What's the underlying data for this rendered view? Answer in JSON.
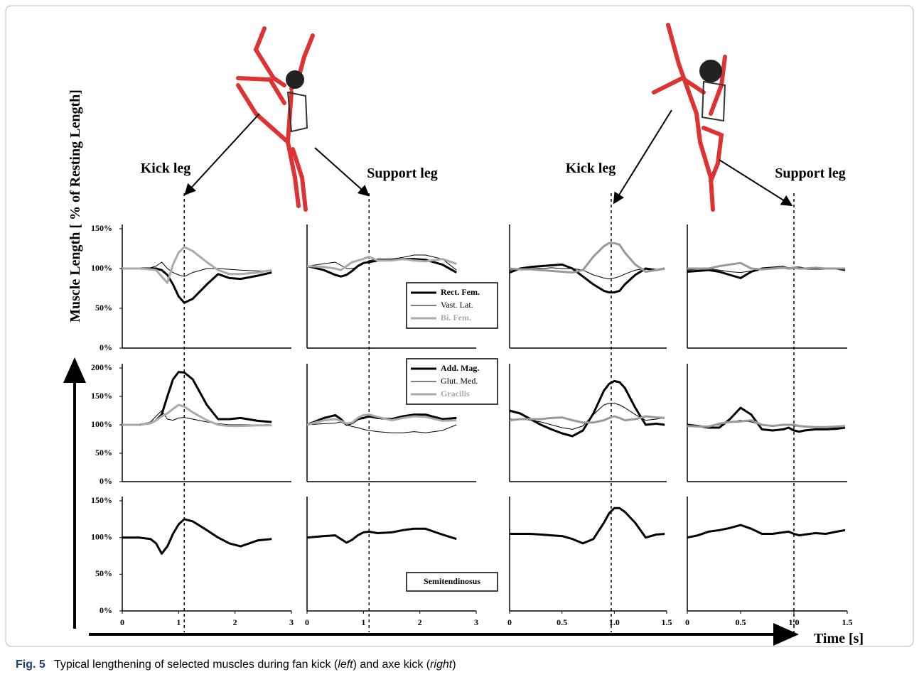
{
  "labels": {
    "kick_left": "Kick leg",
    "support_left": "Support leg",
    "kick_right": "Kick leg",
    "support_right": "Support leg",
    "y_axis": "Muscle Length [ % of Resting Length]",
    "x_axis": "Time [s]"
  },
  "caption": {
    "label": "Fig. 5",
    "parts": [
      "Typical lengthening of selected muscles during fan kick (",
      "left",
      ") and axe kick (",
      "right",
      ")"
    ]
  },
  "chart_data": [
    {
      "type": "line",
      "xlim": [
        0,
        3
      ],
      "ylim": [
        0,
        150
      ],
      "yticks": [
        {
          "value": 0,
          "label": "0%"
        },
        {
          "value": 50,
          "label": "50%"
        },
        {
          "value": 100,
          "label": "100%"
        },
        {
          "value": 150,
          "label": "150%"
        }
      ],
      "event_x": 1.1,
      "x": [
        0,
        0.3,
        0.5,
        0.6,
        0.7,
        0.8,
        0.9,
        1.0,
        1.1,
        1.25,
        1.5,
        1.7,
        1.9,
        2.1,
        2.4,
        2.65
      ],
      "series": [
        {
          "color": "#000000",
          "width": 3,
          "values": [
            100,
            100,
            100,
            100,
            98,
            92,
            80,
            65,
            57,
            62,
            80,
            93,
            88,
            87,
            91,
            95
          ]
        },
        {
          "color": "#000000",
          "width": 1,
          "values": [
            100,
            100,
            101,
            103,
            108,
            100,
            95,
            92,
            90,
            95,
            100,
            100,
            99,
            98,
            97,
            97
          ]
        },
        {
          "color": "#aaaaaa",
          "width": 3,
          "values": [
            100,
            100,
            99,
            98,
            90,
            82,
            105,
            120,
            127,
            122,
            108,
            98,
            93,
            93,
            95,
            98
          ]
        }
      ]
    },
    {
      "type": "line",
      "xlim": [
        0,
        3
      ],
      "ylim": [
        0,
        150
      ],
      "event_x": 1.1,
      "legend": "lower right",
      "x": [
        0,
        0.3,
        0.5,
        0.6,
        0.7,
        0.8,
        0.9,
        1.0,
        1.1,
        1.25,
        1.5,
        1.7,
        1.9,
        2.1,
        2.4,
        2.65
      ],
      "series": [
        {
          "name": "Rect. Fem.",
          "color": "#000000",
          "width": 3,
          "values": [
            103,
            98,
            92,
            90,
            92,
            97,
            103,
            107,
            108,
            110,
            111,
            112,
            112,
            111,
            105,
            95
          ]
        },
        {
          "name": "Vast. Lat.",
          "color": "#000000",
          "width": 1,
          "values": [
            103,
            106,
            108,
            104,
            100,
            100,
            102,
            106,
            110,
            112,
            112,
            114,
            117,
            117,
            112,
            98
          ]
        },
        {
          "name": "Bi. Fem.",
          "color": "#aaaaaa",
          "width": 3,
          "values": [
            103,
            102,
            100,
            98,
            103,
            108,
            110,
            112,
            115,
            110,
            110,
            112,
            110,
            109,
            112,
            106
          ]
        }
      ]
    },
    {
      "type": "line",
      "xlim": [
        0,
        1.5
      ],
      "ylim": [
        0,
        150
      ],
      "event_x": 0.97,
      "x": [
        0,
        0.1,
        0.2,
        0.3,
        0.4,
        0.5,
        0.6,
        0.7,
        0.8,
        0.9,
        0.95,
        1.0,
        1.05,
        1.1,
        1.2,
        1.3,
        1.4,
        1.48
      ],
      "series": [
        {
          "color": "#000000",
          "width": 3,
          "values": [
            95,
            100,
            102,
            103,
            104,
            105,
            100,
            90,
            80,
            72,
            70,
            70,
            72,
            80,
            92,
            100,
            98,
            100
          ]
        },
        {
          "color": "#000000",
          "width": 1,
          "values": [
            98,
            100,
            100,
            100,
            101,
            100,
            100,
            98,
            92,
            88,
            87,
            88,
            90,
            93,
            98,
            100,
            99,
            100
          ]
        },
        {
          "color": "#999999",
          "width": 3,
          "values": [
            100,
            99,
            99,
            98,
            97,
            96,
            95,
            98,
            115,
            128,
            132,
            132,
            130,
            120,
            105,
            96,
            98,
            100
          ]
        }
      ]
    },
    {
      "type": "line",
      "xlim": [
        0,
        1.5
      ],
      "ylim": [
        0,
        150
      ],
      "event_x": 1.0,
      "x": [
        0,
        0.1,
        0.2,
        0.3,
        0.4,
        0.5,
        0.6,
        0.7,
        0.8,
        0.9,
        0.95,
        1.0,
        1.05,
        1.1,
        1.2,
        1.3,
        1.4,
        1.48
      ],
      "series": [
        {
          "color": "#000000",
          "width": 3,
          "values": [
            96,
            97,
            98,
            96,
            92,
            88,
            96,
            100,
            101,
            102,
            100,
            101,
            101,
            100,
            100,
            100,
            100,
            98
          ]
        },
        {
          "color": "#000000",
          "width": 1,
          "values": [
            98,
            99,
            100,
            98,
            96,
            95,
            97,
            99,
            100,
            100,
            100,
            100,
            100,
            100,
            100,
            100,
            100,
            99
          ]
        },
        {
          "color": "#999999",
          "width": 3,
          "values": [
            100,
            100,
            100,
            103,
            105,
            107,
            100,
            99,
            100,
            101,
            100,
            101,
            100,
            100,
            101,
            100,
            100,
            100
          ]
        }
      ]
    },
    {
      "type": "line",
      "xlim": [
        0,
        3
      ],
      "ylim": [
        0,
        200
      ],
      "yticks": [
        {
          "value": 0,
          "label": "0%"
        },
        {
          "value": 50,
          "label": "50%"
        },
        {
          "value": 100,
          "label": "100%"
        },
        {
          "value": 150,
          "label": "150%"
        },
        {
          "value": 200,
          "label": "200%"
        }
      ],
      "x": [
        0,
        0.3,
        0.5,
        0.6,
        0.7,
        0.8,
        0.9,
        1.0,
        1.1,
        1.25,
        1.5,
        1.7,
        1.9,
        2.1,
        2.4,
        2.65
      ],
      "series": [
        {
          "color": "#000000",
          "width": 3,
          "values": [
            100,
            100,
            103,
            108,
            118,
            150,
            180,
            193,
            192,
            180,
            135,
            110,
            110,
            112,
            107,
            105
          ]
        },
        {
          "color": "#000000",
          "width": 1,
          "values": [
            100,
            100,
            105,
            115,
            125,
            110,
            108,
            112,
            113,
            110,
            105,
            102,
            100,
            100,
            100,
            100
          ]
        },
        {
          "color": "#aaaaaa",
          "width": 3,
          "values": [
            100,
            100,
            103,
            108,
            115,
            120,
            128,
            135,
            132,
            122,
            108,
            100,
            98,
            98,
            99,
            99
          ]
        }
      ]
    },
    {
      "type": "line",
      "xlim": [
        0,
        3
      ],
      "ylim": [
        0,
        200
      ],
      "legend": "upper right",
      "x": [
        0,
        0.3,
        0.5,
        0.6,
        0.7,
        0.8,
        0.9,
        1.0,
        1.1,
        1.25,
        1.5,
        1.7,
        1.9,
        2.1,
        2.4,
        2.65
      ],
      "series": [
        {
          "name": "Add. Mag.",
          "color": "#000000",
          "width": 3,
          "values": [
            100,
            112,
            117,
            110,
            100,
            103,
            110,
            112,
            115,
            112,
            110,
            115,
            118,
            118,
            110,
            112
          ]
        },
        {
          "name": "Glut. Med.",
          "color": "#000000",
          "width": 1,
          "values": [
            100,
            102,
            103,
            105,
            100,
            97,
            95,
            92,
            90,
            88,
            86,
            86,
            88,
            86,
            90,
            100
          ]
        },
        {
          "name": "Gracilis",
          "color": "#aaaaaa",
          "width": 3,
          "values": [
            100,
            108,
            110,
            107,
            102,
            104,
            112,
            117,
            118,
            114,
            108,
            112,
            115,
            114,
            107,
            108
          ]
        }
      ]
    },
    {
      "type": "line",
      "xlim": [
        0,
        1.5
      ],
      "ylim": [
        0,
        200
      ],
      "x": [
        0,
        0.1,
        0.2,
        0.3,
        0.4,
        0.5,
        0.6,
        0.7,
        0.8,
        0.9,
        0.95,
        1.0,
        1.05,
        1.1,
        1.2,
        1.3,
        1.4,
        1.48
      ],
      "series": [
        {
          "color": "#000000",
          "width": 3,
          "values": [
            125,
            120,
            110,
            100,
            92,
            85,
            80,
            90,
            120,
            160,
            172,
            177,
            175,
            165,
            130,
            100,
            102,
            100
          ]
        },
        {
          "color": "#000000",
          "width": 1,
          "values": [
            110,
            110,
            108,
            105,
            100,
            95,
            92,
            98,
            118,
            135,
            138,
            138,
            135,
            130,
            118,
            108,
            110,
            112
          ]
        },
        {
          "color": "#999999",
          "width": 3,
          "values": [
            108,
            110,
            110,
            110,
            112,
            113,
            108,
            104,
            104,
            108,
            112,
            115,
            112,
            108,
            110,
            115,
            113,
            112
          ]
        }
      ]
    },
    {
      "type": "line",
      "xlim": [
        0,
        1.5
      ],
      "ylim": [
        0,
        200
      ],
      "x": [
        0,
        0.1,
        0.2,
        0.3,
        0.4,
        0.5,
        0.6,
        0.7,
        0.8,
        0.9,
        0.95,
        1.0,
        1.05,
        1.1,
        1.2,
        1.3,
        1.4,
        1.48
      ],
      "series": [
        {
          "color": "#000000",
          "width": 3,
          "values": [
            100,
            98,
            95,
            95,
            110,
            130,
            118,
            92,
            90,
            92,
            95,
            90,
            88,
            90,
            92,
            92,
            93,
            95
          ]
        },
        {
          "color": "#000000",
          "width": 1,
          "values": [
            100,
            98,
            98,
            100,
            105,
            108,
            105,
            100,
            98,
            100,
            100,
            98,
            97,
            96,
            95,
            95,
            95,
            96
          ]
        },
        {
          "color": "#999999",
          "width": 3,
          "values": [
            98,
            97,
            97,
            102,
            105,
            106,
            108,
            100,
            98,
            100,
            100,
            100,
            98,
            97,
            96,
            96,
            97,
            98
          ]
        }
      ]
    },
    {
      "type": "line",
      "xlim": [
        0,
        3
      ],
      "ylim": [
        0,
        150
      ],
      "yticks": [
        {
          "value": 0,
          "label": "0%"
        },
        {
          "value": 50,
          "label": "50%"
        },
        {
          "value": 100,
          "label": "100%"
        },
        {
          "value": 150,
          "label": "150%"
        }
      ],
      "xticks": [
        0,
        1,
        2,
        3
      ],
      "x": [
        0,
        0.3,
        0.5,
        0.6,
        0.7,
        0.8,
        0.9,
        1.0,
        1.1,
        1.25,
        1.5,
        1.7,
        1.9,
        2.1,
        2.4,
        2.65
      ],
      "series": [
        {
          "color": "#000000",
          "width": 3,
          "values": [
            100,
            100,
            98,
            92,
            78,
            88,
            105,
            118,
            125,
            122,
            110,
            100,
            92,
            88,
            96,
            98
          ]
        }
      ]
    },
    {
      "type": "line",
      "xlim": [
        0,
        3
      ],
      "ylim": [
        0,
        150
      ],
      "xticks": [
        0,
        1,
        2,
        3
      ],
      "legend": "lower right",
      "x": [
        0,
        0.3,
        0.5,
        0.6,
        0.7,
        0.8,
        0.9,
        1.0,
        1.1,
        1.25,
        1.5,
        1.7,
        1.9,
        2.1,
        2.4,
        2.65
      ],
      "series": [
        {
          "name": "Semitendinosus",
          "color": "#000000",
          "width": 3,
          "values": [
            100,
            102,
            103,
            98,
            93,
            97,
            103,
            107,
            108,
            106,
            107,
            110,
            112,
            112,
            104,
            98
          ]
        }
      ]
    },
    {
      "type": "line",
      "xlim": [
        0,
        1.5
      ],
      "ylim": [
        0,
        150
      ],
      "xticks": [
        0,
        0.5,
        {
          "value": 1,
          "label": "1.0"
        },
        1.5
      ],
      "x": [
        0,
        0.1,
        0.2,
        0.3,
        0.4,
        0.5,
        0.6,
        0.7,
        0.8,
        0.9,
        0.95,
        1.0,
        1.05,
        1.1,
        1.2,
        1.3,
        1.4,
        1.48
      ],
      "series": [
        {
          "color": "#000000",
          "width": 3,
          "values": [
            105,
            105,
            105,
            104,
            103,
            102,
            98,
            92,
            98,
            120,
            133,
            140,
            140,
            135,
            120,
            100,
            104,
            105
          ]
        }
      ]
    },
    {
      "type": "line",
      "xlim": [
        0,
        1.5
      ],
      "ylim": [
        0,
        150
      ],
      "xticks": [
        0,
        0.5,
        {
          "value": 1,
          "label": "1.0"
        },
        1.5
      ],
      "x": [
        0,
        0.1,
        0.2,
        0.3,
        0.4,
        0.5,
        0.6,
        0.7,
        0.8,
        0.9,
        0.95,
        1.0,
        1.05,
        1.1,
        1.2,
        1.3,
        1.4,
        1.48
      ],
      "series": [
        {
          "color": "#000000",
          "width": 3,
          "values": [
            100,
            103,
            108,
            110,
            113,
            117,
            112,
            105,
            105,
            107,
            108,
            105,
            103,
            104,
            106,
            105,
            108,
            110
          ]
        }
      ]
    }
  ]
}
